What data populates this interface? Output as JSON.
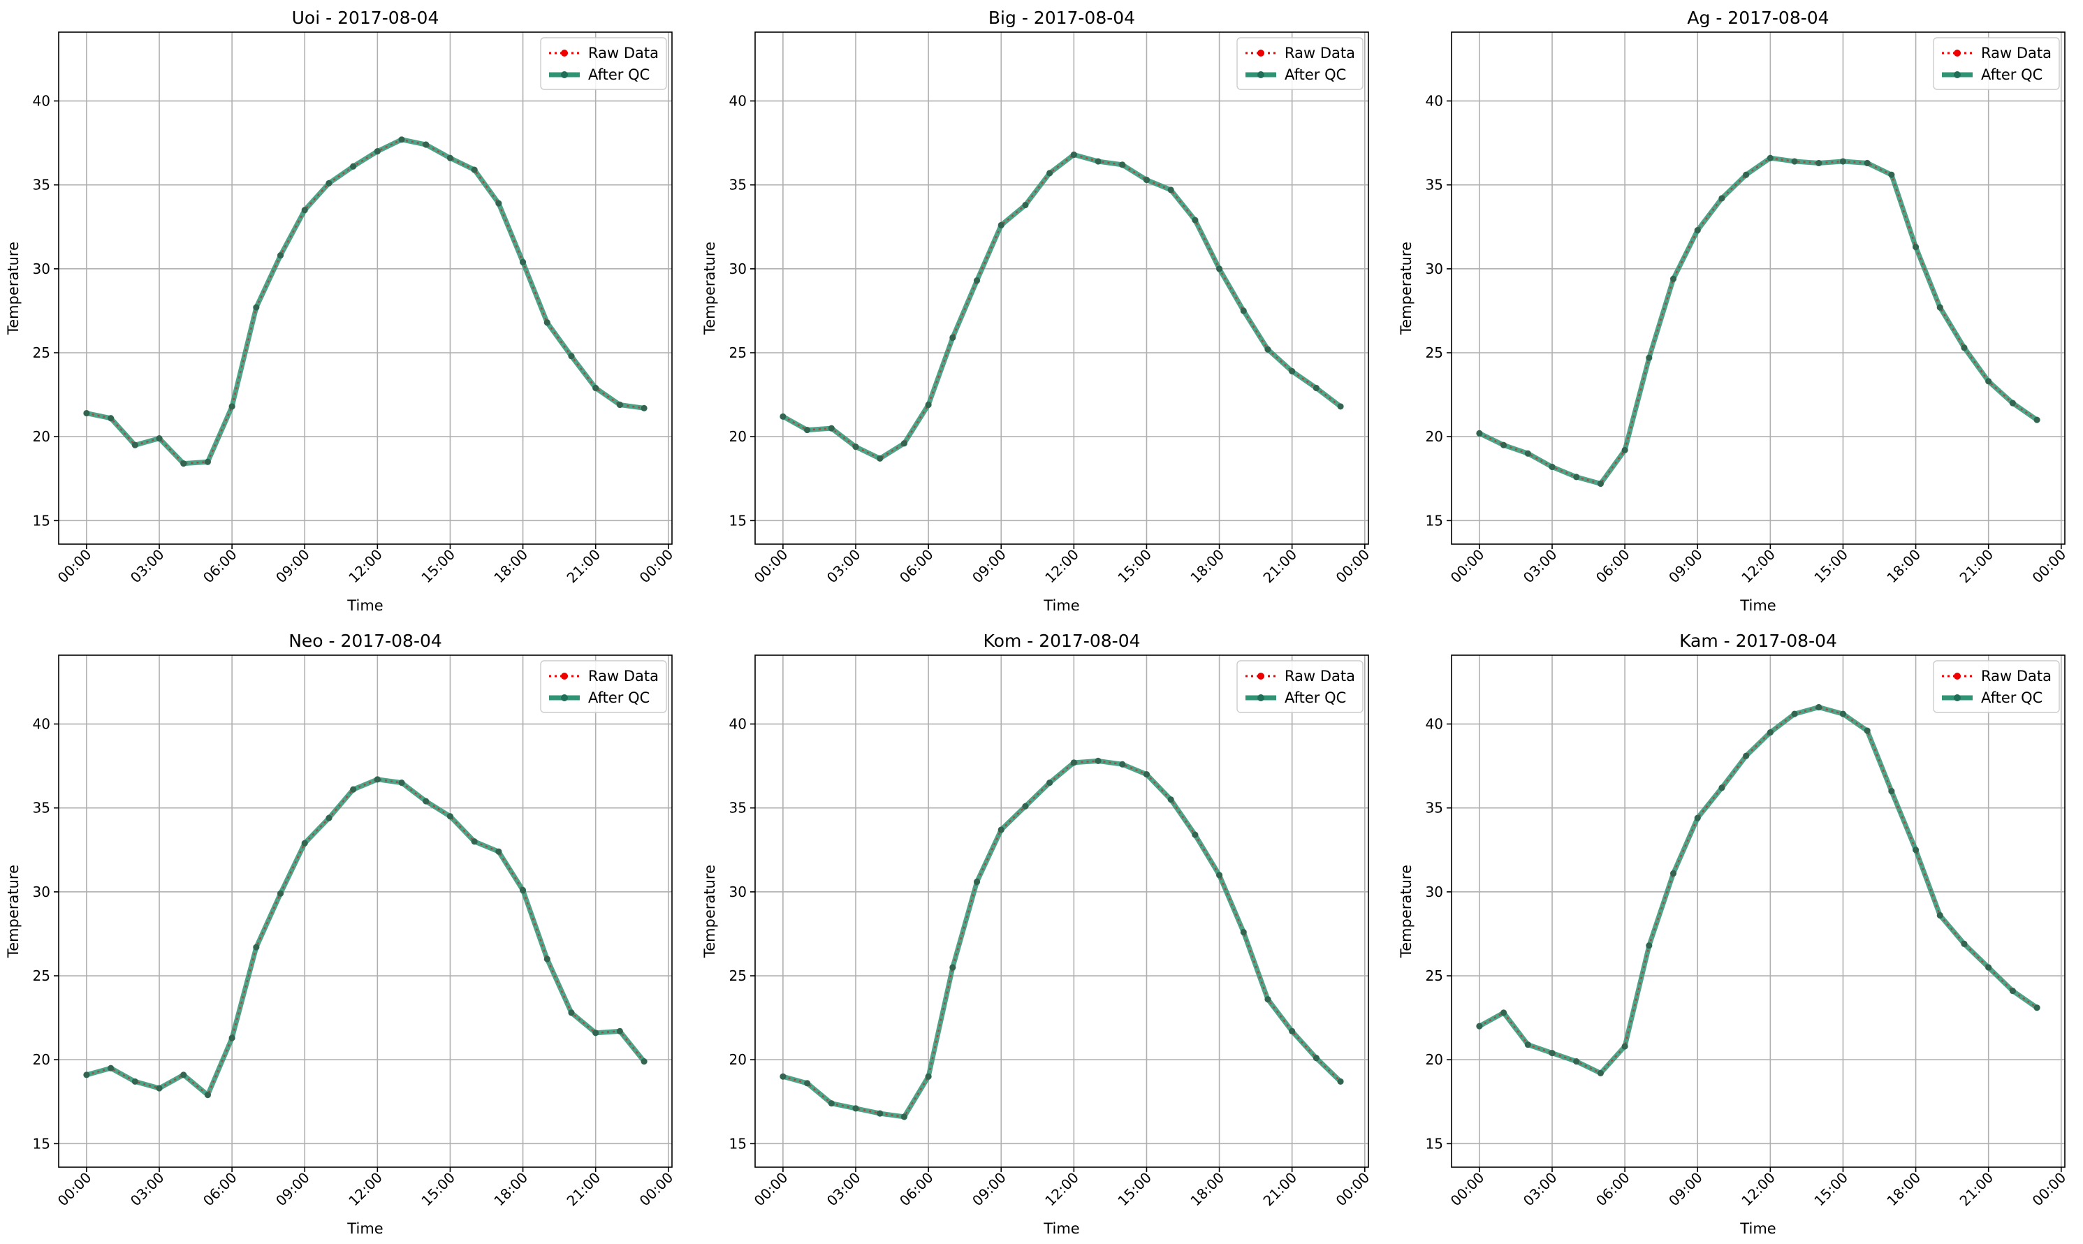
{
  "figure": {
    "date": "2017-08-04"
  },
  "colors": {
    "raw": "#ee0000",
    "qc": "#2e9474",
    "qc_marker": "#1f6f58",
    "grid": "#b0b0b0",
    "legend_border": "#cccccc"
  },
  "legend": {
    "raw_label": "Raw Data",
    "qc_label": "After QC"
  },
  "chart_data": [
    {
      "type": "line",
      "title": "Uoi - 2017-08-04",
      "xlabel": "Time",
      "ylabel": "Temperature",
      "ylim": [
        13.6,
        44.1
      ],
      "yticks": [
        "15",
        "20",
        "25",
        "30",
        "35",
        "40"
      ],
      "xticks": [
        "00:00",
        "03:00",
        "06:00",
        "09:00",
        "12:00",
        "15:00",
        "18:00",
        "21:00",
        "00:00"
      ],
      "x_hours": [
        0,
        1,
        2,
        3,
        4,
        5,
        6,
        7,
        8,
        9,
        10,
        11,
        12,
        13,
        14,
        15,
        16,
        17,
        18,
        19,
        20,
        21,
        22,
        23
      ],
      "series": [
        {
          "name": "Raw Data",
          "values": [
            21.4,
            21.1,
            19.5,
            19.9,
            18.4,
            18.5,
            21.8,
            27.7,
            30.8,
            33.5,
            35.1,
            36.1,
            37.0,
            37.7,
            37.4,
            36.6,
            35.9,
            33.9,
            30.4,
            26.8,
            24.8,
            22.9,
            21.9,
            21.7
          ]
        },
        {
          "name": "After QC",
          "values": [
            21.4,
            21.1,
            19.5,
            19.9,
            18.4,
            18.5,
            21.8,
            27.7,
            30.8,
            33.5,
            35.1,
            36.1,
            37.0,
            37.7,
            37.4,
            36.6,
            35.9,
            33.9,
            30.4,
            26.8,
            24.8,
            22.9,
            21.9,
            21.7
          ]
        }
      ],
      "grid": true,
      "legend_position": "top-right"
    },
    {
      "type": "line",
      "title": "Big - 2017-08-04",
      "xlabel": "Time",
      "ylabel": "Temperature",
      "ylim": [
        13.6,
        44.1
      ],
      "yticks": [
        "15",
        "20",
        "25",
        "30",
        "35",
        "40"
      ],
      "xticks": [
        "00:00",
        "03:00",
        "06:00",
        "09:00",
        "12:00",
        "15:00",
        "18:00",
        "21:00",
        "00:00"
      ],
      "x_hours": [
        0,
        1,
        2,
        3,
        4,
        5,
        6,
        7,
        8,
        9,
        10,
        11,
        12,
        13,
        14,
        15,
        16,
        17,
        18,
        19,
        20,
        21,
        22,
        23
      ],
      "series": [
        {
          "name": "Raw Data",
          "values": [
            21.2,
            20.4,
            20.5,
            19.4,
            18.7,
            19.6,
            21.9,
            25.9,
            29.3,
            32.6,
            33.8,
            35.7,
            36.8,
            36.4,
            36.2,
            35.3,
            34.7,
            32.9,
            30.0,
            27.5,
            25.2,
            23.9,
            22.9,
            21.8
          ]
        },
        {
          "name": "After QC",
          "values": [
            21.2,
            20.4,
            20.5,
            19.4,
            18.7,
            19.6,
            21.9,
            25.9,
            29.3,
            32.6,
            33.8,
            35.7,
            36.8,
            36.4,
            36.2,
            35.3,
            34.7,
            32.9,
            30.0,
            27.5,
            25.2,
            23.9,
            22.9,
            21.8
          ]
        }
      ],
      "grid": true,
      "legend_position": "top-right"
    },
    {
      "type": "line",
      "title": "Ag - 2017-08-04",
      "xlabel": "Time",
      "ylabel": "Temperature",
      "ylim": [
        13.6,
        44.1
      ],
      "yticks": [
        "15",
        "20",
        "25",
        "30",
        "35",
        "40"
      ],
      "xticks": [
        "00:00",
        "03:00",
        "06:00",
        "09:00",
        "12:00",
        "15:00",
        "18:00",
        "21:00",
        "00:00"
      ],
      "x_hours": [
        0,
        1,
        2,
        3,
        4,
        5,
        6,
        7,
        8,
        9,
        10,
        11,
        12,
        13,
        14,
        15,
        16,
        17,
        18,
        19,
        20,
        21,
        22,
        23
      ],
      "series": [
        {
          "name": "Raw Data",
          "values": [
            20.2,
            19.5,
            19.0,
            18.2,
            17.6,
            17.2,
            19.2,
            24.7,
            29.4,
            32.3,
            34.2,
            35.6,
            36.6,
            36.4,
            36.3,
            36.4,
            36.3,
            35.6,
            31.3,
            27.7,
            25.3,
            23.3,
            22.0,
            21.0
          ]
        },
        {
          "name": "After QC",
          "values": [
            20.2,
            19.5,
            19.0,
            18.2,
            17.6,
            17.2,
            19.2,
            24.7,
            29.4,
            32.3,
            34.2,
            35.6,
            36.6,
            36.4,
            36.3,
            36.4,
            36.3,
            35.6,
            31.3,
            27.7,
            25.3,
            23.3,
            22.0,
            21.0
          ]
        }
      ],
      "grid": true,
      "legend_position": "top-right"
    },
    {
      "type": "line",
      "title": "Neo - 2017-08-04",
      "xlabel": "Time",
      "ylabel": "Temperature",
      "ylim": [
        13.6,
        44.1
      ],
      "yticks": [
        "15",
        "20",
        "25",
        "30",
        "35",
        "40"
      ],
      "xticks": [
        "00:00",
        "03:00",
        "06:00",
        "09:00",
        "12:00",
        "15:00",
        "18:00",
        "21:00",
        "00:00"
      ],
      "x_hours": [
        0,
        1,
        2,
        3,
        4,
        5,
        6,
        7,
        8,
        9,
        10,
        11,
        12,
        13,
        14,
        15,
        16,
        17,
        18,
        19,
        20,
        21,
        22,
        23
      ],
      "series": [
        {
          "name": "Raw Data",
          "values": [
            19.1,
            19.5,
            18.7,
            18.3,
            19.1,
            17.9,
            21.3,
            26.7,
            29.9,
            32.9,
            34.4,
            36.1,
            36.7,
            36.5,
            35.4,
            34.5,
            33.0,
            32.4,
            30.1,
            26.0,
            22.8,
            21.6,
            21.7,
            19.9
          ]
        },
        {
          "name": "After QC",
          "values": [
            19.1,
            19.5,
            18.7,
            18.3,
            19.1,
            17.9,
            21.3,
            26.7,
            29.9,
            32.9,
            34.4,
            36.1,
            36.7,
            36.5,
            35.4,
            34.5,
            33.0,
            32.4,
            30.1,
            26.0,
            22.8,
            21.6,
            21.7,
            19.9
          ]
        }
      ],
      "grid": true,
      "legend_position": "top-right"
    },
    {
      "type": "line",
      "title": "Kom - 2017-08-04",
      "xlabel": "Time",
      "ylabel": "Temperature",
      "ylim": [
        13.6,
        44.1
      ],
      "yticks": [
        "15",
        "20",
        "25",
        "30",
        "35",
        "40"
      ],
      "xticks": [
        "00:00",
        "03:00",
        "06:00",
        "09:00",
        "12:00",
        "15:00",
        "18:00",
        "21:00",
        "00:00"
      ],
      "x_hours": [
        0,
        1,
        2,
        3,
        4,
        5,
        6,
        7,
        8,
        9,
        10,
        11,
        12,
        13,
        14,
        15,
        16,
        17,
        18,
        19,
        20,
        21,
        22,
        23
      ],
      "series": [
        {
          "name": "Raw Data",
          "values": [
            19.0,
            18.6,
            17.4,
            17.1,
            16.8,
            16.6,
            19.0,
            25.5,
            30.6,
            33.7,
            35.1,
            36.5,
            37.7,
            37.8,
            37.6,
            37.0,
            35.5,
            33.4,
            31.0,
            27.6,
            23.6,
            21.7,
            20.1,
            18.7
          ]
        },
        {
          "name": "After QC",
          "values": [
            19.0,
            18.6,
            17.4,
            17.1,
            16.8,
            16.6,
            19.0,
            25.5,
            30.6,
            33.7,
            35.1,
            36.5,
            37.7,
            37.8,
            37.6,
            37.0,
            35.5,
            33.4,
            31.0,
            27.6,
            23.6,
            21.7,
            20.1,
            18.7
          ]
        }
      ],
      "grid": true,
      "legend_position": "top-right"
    },
    {
      "type": "line",
      "title": "Kam - 2017-08-04",
      "xlabel": "Time",
      "ylabel": "Temperature",
      "ylim": [
        13.6,
        44.1
      ],
      "yticks": [
        "15",
        "20",
        "25",
        "30",
        "35",
        "40"
      ],
      "xticks": [
        "00:00",
        "03:00",
        "06:00",
        "09:00",
        "12:00",
        "15:00",
        "18:00",
        "21:00",
        "00:00"
      ],
      "x_hours": [
        0,
        1,
        2,
        3,
        4,
        5,
        6,
        7,
        8,
        9,
        10,
        11,
        12,
        13,
        14,
        15,
        16,
        17,
        18,
        19,
        20,
        21,
        22,
        23
      ],
      "series": [
        {
          "name": "Raw Data",
          "values": [
            22.0,
            22.8,
            20.9,
            20.4,
            19.9,
            19.2,
            20.8,
            26.8,
            31.1,
            34.4,
            36.2,
            38.1,
            39.5,
            40.6,
            41.0,
            40.6,
            39.6,
            36.0,
            32.5,
            28.6,
            26.9,
            25.5,
            24.1,
            23.1
          ]
        },
        {
          "name": "After QC",
          "values": [
            22.0,
            22.8,
            20.9,
            20.4,
            19.9,
            19.2,
            20.8,
            26.8,
            31.1,
            34.4,
            36.2,
            38.1,
            39.5,
            40.6,
            41.0,
            40.6,
            39.6,
            36.0,
            32.5,
            28.6,
            26.9,
            25.5,
            24.1,
            23.1
          ]
        }
      ],
      "grid": true,
      "legend_position": "top-right"
    }
  ]
}
